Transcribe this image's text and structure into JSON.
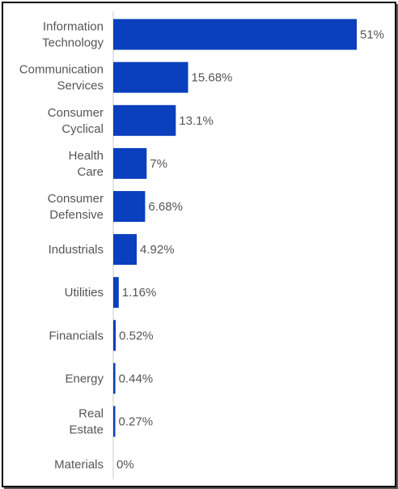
{
  "chart_data": {
    "type": "bar",
    "orientation": "horizontal",
    "categories": [
      [
        "Information",
        "Technology"
      ],
      [
        "Communication",
        "Services"
      ],
      [
        "Consumer",
        "Cyclical"
      ],
      [
        "Health",
        "Care"
      ],
      [
        "Consumer",
        "Defensive"
      ],
      [
        "Industrials"
      ],
      [
        "Utilities"
      ],
      [
        "Financials"
      ],
      [
        "Energy"
      ],
      [
        "Real",
        "Estate"
      ],
      [
        "Materials"
      ]
    ],
    "values": [
      51,
      15.68,
      13.1,
      7,
      6.68,
      4.92,
      1.16,
      0.52,
      0.44,
      0.27,
      0
    ],
    "value_labels": [
      "51%",
      "15.68%",
      "13.1%",
      "7%",
      "6.68%",
      "4.92%",
      "1.16%",
      "0.52%",
      "0.44%",
      "0.27%",
      "0%"
    ],
    "xlim": [
      0,
      51
    ],
    "bar_color": "#0a3fbd",
    "axis_color": "#c8c8c8",
    "grid": false
  }
}
